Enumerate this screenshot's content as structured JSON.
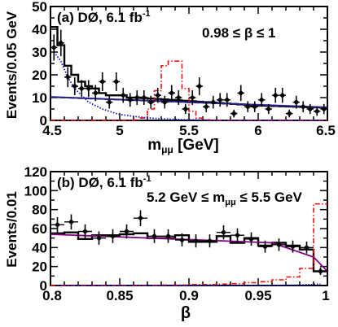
{
  "chart_data": [
    {
      "type": "line",
      "panel_label": "(a)",
      "experiment": "DØ, 6.1 fb",
      "lumi_exp": "-1",
      "cut_label": "0.98 ≤ β ≤ 1",
      "xlabel": "m",
      "xlabel_sub": "μμ",
      "xlabel_unit": "[GeV]",
      "ylabel": "Events/0.05 GeV",
      "xlim": [
        4.5,
        6.5
      ],
      "ylim": [
        0,
        50
      ],
      "xticks": [
        4.5,
        5,
        5.5,
        6,
        6.5
      ],
      "xtick_labels": [
        "4.5",
        "5",
        "5.5",
        "6",
        "6.5"
      ],
      "yticks": [
        0,
        10,
        20,
        30,
        40,
        50
      ],
      "ytick_labels": [
        "0",
        "10",
        "20",
        "30",
        "40",
        "50"
      ],
      "colors": {
        "data": "#000000",
        "total": "#000000",
        "signal": "#ee1111",
        "background_trend": "#800080",
        "prompt": "#1010cc",
        "fit_line": "#22228a"
      },
      "data_points": {
        "x": [
          4.525,
          4.575,
          4.625,
          4.675,
          4.725,
          4.775,
          4.825,
          4.875,
          4.925,
          4.975,
          5.025,
          5.075,
          5.125,
          5.175,
          5.225,
          5.275,
          5.325,
          5.375,
          5.425,
          5.475,
          5.525,
          5.575,
          5.625,
          5.675,
          5.725,
          5.775,
          5.825,
          5.875,
          5.925,
          5.975,
          6.025,
          6.075,
          6.125,
          6.175,
          6.225,
          6.275,
          6.325,
          6.375,
          6.425,
          6.475
        ],
        "y": [
          32,
          34,
          19,
          15,
          14,
          14,
          12,
          17,
          8,
          17,
          11,
          9,
          10,
          10,
          8,
          11,
          8,
          12,
          10,
          5,
          10,
          15,
          6,
          8,
          9,
          9,
          3,
          12,
          6,
          6,
          9,
          5,
          11,
          11,
          3,
          8,
          6,
          5,
          4,
          5
        ],
        "yerr": [
          5.7,
          5.8,
          4.4,
          3.9,
          3.7,
          3.7,
          3.5,
          4.1,
          2.8,
          4.1,
          3.3,
          3.0,
          3.2,
          3.2,
          2.8,
          3.3,
          2.8,
          3.5,
          3.2,
          2.2,
          3.2,
          3.9,
          2.4,
          2.8,
          3.0,
          3.0,
          1.7,
          3.5,
          2.4,
          2.4,
          3.0,
          2.2,
          3.3,
          3.3,
          1.7,
          2.8,
          2.4,
          2.2,
          2.0,
          2.2
        ]
      },
      "series": [
        {
          "name": "total",
          "style": "solid-step",
          "values": [
            41,
            33,
            24,
            20,
            17,
            15,
            14,
            12,
            11,
            11,
            11,
            10,
            10,
            9.8,
            9.6,
            9.4,
            9.2,
            9.0,
            8.8,
            8.6,
            8.4,
            8.2,
            8.0,
            7.8,
            7.6,
            7.4,
            7.2,
            7.0,
            6.8,
            6.6,
            6.5,
            6.4,
            6.3,
            6.2,
            6.1,
            6.0,
            5.9,
            5.8,
            5.7,
            5.6
          ]
        },
        {
          "name": "signal",
          "style": "dash-dot-step",
          "values": [
            0,
            0,
            0,
            0,
            0,
            0,
            0,
            0,
            0,
            0,
            0,
            0,
            0.2,
            1.0,
            5.0,
            13.0,
            24.0,
            26.0,
            26.0,
            14.0,
            4.0,
            1.0,
            0.3,
            0,
            0,
            0,
            0,
            0,
            0,
            0,
            0,
            0,
            0,
            0,
            0,
            0,
            0,
            0,
            0,
            0
          ]
        },
        {
          "name": "prompt",
          "style": "dotted",
          "values": [
            30,
            26,
            19,
            14,
            11,
            8,
            6.5,
            5.0,
            4.0,
            3.0,
            2.4,
            2.0,
            1.6,
            1.3,
            1.0,
            0.8,
            0.6,
            0.5,
            0.4,
            0.3,
            0.2,
            0.2,
            0.1,
            0.1,
            0,
            0,
            0,
            0,
            0,
            0,
            0,
            0,
            0,
            0,
            0,
            0,
            0,
            0,
            0,
            0
          ]
        },
        {
          "name": "background",
          "style": "dashed",
          "x": [
            4.5,
            6.5
          ],
          "y": [
            10.2,
            5.6
          ]
        },
        {
          "name": "fit",
          "style": "solid",
          "x": [
            4.5,
            6.5
          ],
          "y": [
            10.3,
            5.7
          ]
        }
      ]
    },
    {
      "type": "line",
      "panel_label": "(b)",
      "experiment": "DØ, 6.1 fb",
      "lumi_exp": "-1",
      "cut_label": "5.2 GeV ≤ m",
      "cut_sub": "μμ",
      "cut_tail": "≤ 5.5 GeV",
      "xlabel": "β",
      "ylabel": "Events/0.01",
      "xlim": [
        0.8,
        1.0
      ],
      "ylim": [
        0,
        120
      ],
      "xticks": [
        0.8,
        0.85,
        0.9,
        0.95,
        1.0
      ],
      "xtick_labels": [
        "0.8",
        "0.85",
        "0.9",
        "0.95",
        "1"
      ],
      "yticks": [
        0,
        20,
        40,
        60,
        80,
        100,
        120
      ],
      "ytick_labels": [
        "0",
        "20",
        "40",
        "60",
        "80",
        "100",
        "120"
      ],
      "colors": {
        "data": "#000000",
        "total": "#000000",
        "signal": "#ee1111",
        "background_trend": "#800080",
        "prompt": "#1010cc"
      },
      "data_points": {
        "x": [
          0.805,
          0.815,
          0.825,
          0.835,
          0.845,
          0.855,
          0.865,
          0.875,
          0.885,
          0.895,
          0.905,
          0.915,
          0.925,
          0.935,
          0.945,
          0.955,
          0.965,
          0.975,
          0.985,
          0.995
        ],
        "y": [
          64,
          67,
          57,
          50,
          52,
          57,
          71,
          52,
          52,
          48,
          47,
          47,
          56,
          53,
          49,
          41,
          43,
          41,
          40,
          15
        ],
        "yerr": [
          8,
          8,
          7.5,
          7,
          7.2,
          7.5,
          8.4,
          7.2,
          7.2,
          6.9,
          6.9,
          6.9,
          7.5,
          7.3,
          7.0,
          6.4,
          6.6,
          6.4,
          6.3,
          3.9
        ]
      },
      "series": [
        {
          "name": "total",
          "style": "solid-step",
          "values": [
            55,
            56,
            49,
            53,
            53,
            54,
            55,
            50,
            50,
            53,
            46,
            46,
            52,
            45,
            50,
            42,
            45,
            42,
            38,
            15
          ]
        },
        {
          "name": "signal",
          "style": "dash-dot-step",
          "values": [
            0,
            0,
            0,
            0,
            0,
            0,
            0,
            0,
            0.5,
            0.5,
            1,
            1,
            1.5,
            2,
            3,
            4,
            6,
            9,
            18,
            86
          ]
        },
        {
          "name": "prompt",
          "style": "dotted",
          "values": [
            0,
            0,
            0,
            0,
            0,
            0,
            0,
            0,
            0,
            0,
            0,
            0,
            0,
            0,
            0,
            0,
            0.2,
            0.4,
            0.8,
            1.5
          ]
        },
        {
          "name": "background",
          "style": "solid",
          "x": [
            0.8,
            0.96,
            0.99,
            1.0
          ],
          "y": [
            54,
            45,
            30,
            15
          ]
        }
      ]
    }
  ]
}
